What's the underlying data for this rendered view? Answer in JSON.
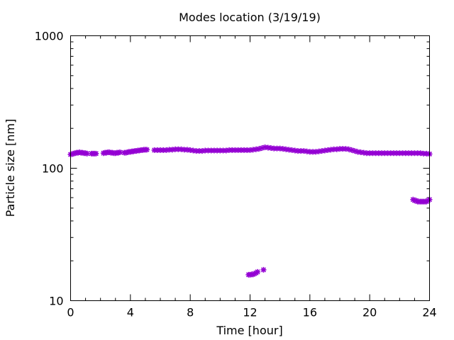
{
  "chart_data": {
    "type": "scatter",
    "title": "Modes location (3/19/19)",
    "xlabel": "Time [hour]",
    "ylabel": "Particle size [nm]",
    "xlim": [
      0,
      24
    ],
    "ylim": [
      10,
      1000
    ],
    "y_scale": "log",
    "x_ticks": [
      0,
      4,
      8,
      12,
      16,
      20,
      24
    ],
    "x_tick_labels": [
      "0",
      "4",
      "8",
      "12",
      "16",
      "20",
      "24"
    ],
    "y_ticks": [
      10,
      100,
      1000
    ],
    "y_tick_labels": [
      "10",
      "100",
      "1000"
    ],
    "grid": false,
    "marker_color": "#9400d3",
    "series": [
      {
        "segments": [
          {
            "x": [
              0.0,
              0.1,
              0.2,
              0.3,
              0.4,
              0.5,
              0.6,
              0.7,
              0.8,
              0.9,
              1.0,
              1.1
            ],
            "y": [
              127,
              128,
              129,
              130,
              131,
              131,
              132,
              131,
              131,
              130,
              130,
              129
            ]
          },
          {
            "x": [
              1.4,
              1.5,
              1.6,
              1.7
            ],
            "y": [
              129,
              129,
              129,
              129
            ]
          },
          {
            "x": [
              2.2,
              2.3,
              2.4,
              2.5,
              2.6,
              2.7,
              2.8,
              2.9,
              3.0,
              3.1,
              3.2,
              3.3
            ],
            "y": [
              130,
              131,
              131,
              132,
              132,
              131,
              131,
              130,
              130,
              131,
              131,
              132
            ]
          },
          {
            "x": [
              3.6,
              3.7,
              3.8,
              3.9,
              4.0,
              4.1,
              4.2,
              4.3,
              4.4,
              4.5,
              4.6,
              4.7,
              4.8,
              4.9,
              5.0,
              5.1
            ],
            "y": [
              131,
              131,
              132,
              133,
              133,
              134,
              134,
              135,
              135,
              136,
              136,
              137,
              137,
              138,
              138,
              138
            ]
          },
          {
            "x": [
              5.6,
              5.8,
              6.0,
              6.2,
              6.4,
              6.6,
              6.8,
              7.0,
              7.2,
              7.4,
              7.6,
              7.8,
              8.0,
              8.2,
              8.4,
              8.6,
              8.8,
              9.0,
              9.2,
              9.4,
              9.6,
              9.8,
              10.0,
              10.2,
              10.4,
              10.6,
              10.8,
              11.0,
              11.2,
              11.4,
              11.6,
              11.8,
              12.0,
              12.2,
              12.4,
              12.6,
              12.8,
              13.0,
              13.2,
              13.4,
              13.6,
              13.8,
              14.0,
              14.2,
              14.4,
              14.6,
              14.8,
              15.0,
              15.2,
              15.4,
              15.6,
              15.8,
              16.0,
              16.2,
              16.4,
              16.6,
              16.8,
              17.0,
              17.2,
              17.4,
              17.6,
              17.8,
              18.0,
              18.2,
              18.4,
              18.6,
              18.8,
              19.0,
              19.2,
              19.4,
              19.6,
              19.8,
              20.0,
              20.2,
              20.4,
              20.6,
              20.8,
              21.0,
              21.2,
              21.4,
              21.6,
              21.8,
              22.0,
              22.2,
              22.4,
              22.6,
              22.8,
              23.0,
              23.2,
              23.4,
              23.6,
              23.8,
              24.0
            ],
            "y": [
              137,
              137,
              137,
              137,
              137,
              138,
              138,
              139,
              139,
              139,
              138,
              138,
              137,
              136,
              135,
              135,
              135,
              136,
              136,
              136,
              136,
              136,
              136,
              136,
              136,
              137,
              137,
              137,
              137,
              137,
              137,
              137,
              137,
              138,
              139,
              140,
              142,
              144,
              143,
              142,
              141,
              141,
              141,
              140,
              139,
              138,
              137,
              136,
              135,
              135,
              135,
              134,
              133,
              133,
              133,
              134,
              135,
              136,
              137,
              138,
              139,
              139,
              140,
              140,
              140,
              139,
              137,
              135,
              133,
              132,
              131,
              130,
              130,
              130,
              130,
              130,
              130,
              130,
              130,
              130,
              130,
              130,
              130,
              130,
              130,
              130,
              130,
              130,
              130,
              130,
              129,
              129,
              128
            ]
          }
        ]
      },
      {
        "segments": [
          {
            "x": [
              11.9,
              12.0,
              12.1,
              12.2,
              12.3,
              12.4,
              12.5
            ],
            "y": [
              15.7,
              15.7,
              15.8,
              15.8,
              16.0,
              16.2,
              16.5
            ]
          },
          {
            "x": [
              12.9
            ],
            "y": [
              17.1
            ]
          }
        ]
      },
      {
        "segments": [
          {
            "x": [
              22.9,
              23.0,
              23.1,
              23.2,
              23.3,
              23.4,
              23.5,
              23.6,
              23.7,
              23.8,
              23.9,
              24.0
            ],
            "y": [
              58,
              57,
              57,
              56,
              56,
              56,
              56,
              56,
              56,
              56,
              57,
              58
            ]
          }
        ]
      }
    ]
  }
}
